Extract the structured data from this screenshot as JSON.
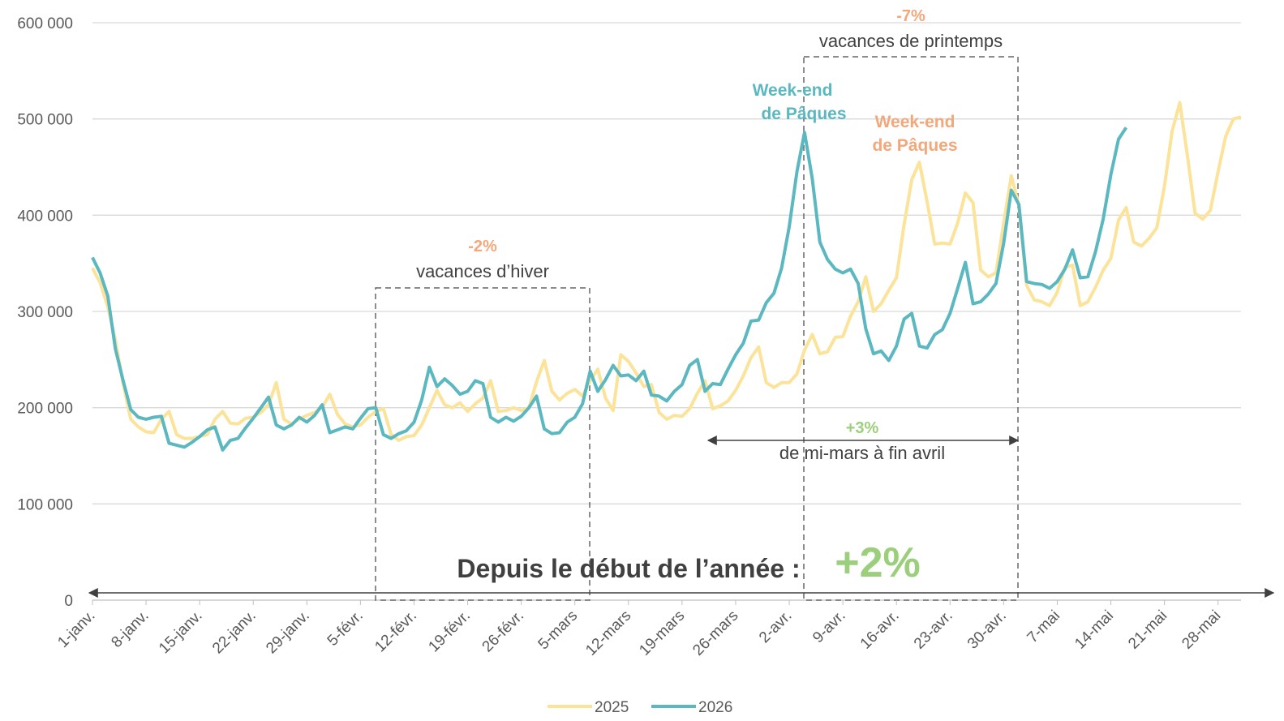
{
  "chart_data": {
    "type": "line",
    "categories": [
      "1-janv.",
      null,
      null,
      null,
      null,
      null,
      null,
      "8-janv.",
      null,
      null,
      null,
      null,
      null,
      null,
      "15-janv.",
      null,
      null,
      null,
      null,
      null,
      null,
      "22-janv.",
      null,
      null,
      null,
      null,
      null,
      null,
      "29-janv.",
      null,
      null,
      null,
      null,
      null,
      null,
      "5-févr.",
      null,
      null,
      null,
      null,
      null,
      null,
      "12-févr.",
      null,
      null,
      null,
      null,
      null,
      null,
      "19-févr.",
      null,
      null,
      null,
      null,
      null,
      null,
      "26-févr.",
      null,
      null,
      null,
      null,
      null,
      null,
      "5-mars",
      null,
      null,
      null,
      null,
      null,
      null,
      "12-mars",
      null,
      null,
      null,
      null,
      null,
      null,
      "19-mars",
      null,
      null,
      null,
      null,
      null,
      null,
      "26-mars",
      null,
      null,
      null,
      null,
      null,
      null,
      "2-avr.",
      null,
      null,
      null,
      null,
      null,
      null,
      "9-avr.",
      null,
      null,
      null,
      null,
      null,
      null,
      "16-avr.",
      null,
      null,
      null,
      null,
      null,
      null,
      "23-avr.",
      null,
      null,
      null,
      null,
      null,
      null,
      "30-avr.",
      null,
      null,
      null,
      null,
      null,
      null,
      "7-mai",
      null,
      null,
      null,
      null,
      null,
      null,
      "14-mai",
      null,
      null,
      null,
      null,
      null,
      null,
      "21-mai",
      null,
      null,
      null,
      null,
      null,
      null,
      "28-mai",
      null,
      null,
      null
    ],
    "series": [
      {
        "name": "2025",
        "color": "#fbe39a",
        "values": [
          345000,
          330000,
          305000,
          270000,
          225000,
          188000,
          180000,
          175000,
          174000,
          188000,
          196000,
          172000,
          168000,
          168000,
          170000,
          172000,
          188000,
          196000,
          184000,
          183000,
          189000,
          190000,
          195000,
          203000,
          226000,
          188000,
          183000,
          188000,
          192000,
          195000,
          200000,
          214000,
          193000,
          183000,
          180000,
          182000,
          190000,
          196000,
          199000,
          172000,
          166000,
          170000,
          171000,
          182000,
          200000,
          218000,
          203000,
          200000,
          205000,
          196000,
          204000,
          210000,
          228000,
          196000,
          197000,
          200000,
          197000,
          200000,
          227000,
          249000,
          217000,
          208000,
          215000,
          219000,
          212000,
          228000,
          240000,
          210000,
          197000,
          255000,
          248000,
          236000,
          222000,
          224000,
          195000,
          188000,
          192000,
          191000,
          199000,
          215000,
          228000,
          199000,
          202000,
          207000,
          218000,
          233000,
          252000,
          263000,
          226000,
          221000,
          226000,
          226000,
          235000,
          260000,
          276000,
          256000,
          258000,
          273000,
          274000,
          295000,
          310000,
          336000,
          300000,
          308000,
          322000,
          335000,
          390000,
          437000,
          455000,
          414000,
          370000,
          371000,
          370000,
          392000,
          423000,
          413000,
          343000,
          336000,
          340000,
          392000,
          441000,
          410000,
          327000,
          312000,
          310000,
          306000,
          320000,
          346000,
          348000,
          306000,
          310000,
          325000,
          343000,
          355000,
          395000,
          408000,
          372000,
          368000,
          376000,
          387000,
          430000,
          487000,
          517000,
          462000,
          402000,
          396000,
          405000,
          445000,
          482000,
          500000,
          502000
        ]
      },
      {
        "name": "2026",
        "color": "#5bb8c0",
        "values": [
          356000,
          340000,
          316000,
          261000,
          228000,
          198000,
          190000,
          188000,
          190000,
          191000,
          163000,
          161000,
          159000,
          164000,
          170000,
          177000,
          180000,
          156000,
          166000,
          168000,
          179000,
          189000,
          200000,
          211000,
          182000,
          178000,
          182000,
          190000,
          185000,
          192000,
          203000,
          174000,
          177000,
          180000,
          178000,
          189000,
          199000,
          200000,
          172000,
          168000,
          173000,
          176000,
          185000,
          208000,
          242000,
          222000,
          230000,
          223000,
          214000,
          217000,
          228000,
          225000,
          190000,
          185000,
          190000,
          186000,
          191000,
          200000,
          212000,
          178000,
          173000,
          174000,
          185000,
          190000,
          204000,
          238000,
          217000,
          229000,
          244000,
          233000,
          234000,
          228000,
          238000,
          213000,
          212000,
          207000,
          217000,
          224000,
          244000,
          250000,
          217000,
          225000,
          224000,
          240000,
          255000,
          267000,
          290000,
          291000,
          309000,
          319000,
          345000,
          388000,
          445000,
          486000,
          438000,
          372000,
          354000,
          344000,
          340000,
          344000,
          329000,
          282000,
          256000,
          259000,
          249000,
          264000,
          292000,
          298000,
          264000,
          262000,
          276000,
          281000,
          298000,
          324000,
          351000,
          308000,
          310000,
          318000,
          329000,
          371000,
          426000,
          411000,
          331000,
          329000,
          328000,
          324000,
          331000,
          344000,
          364000,
          335000,
          336000,
          362000,
          396000,
          442000,
          479000,
          491000,
          null,
          null,
          null,
          null,
          null,
          null,
          null,
          null,
          null,
          null,
          null,
          null,
          null,
          null,
          null
        ]
      }
    ],
    "ylim": [
      0,
      600000
    ],
    "yticks": [
      0,
      {
        "value": 100000,
        "label": "100 000"
      },
      {
        "value": 200000,
        "label": "200 000"
      },
      {
        "value": 300000,
        "label": "300 000"
      },
      {
        "value": 400000,
        "label": "400 000"
      },
      {
        "value": 500000,
        "label": "500 000"
      },
      {
        "value": 600000,
        "label": "600 000"
      }
    ],
    "grid": true,
    "legend": "bottom",
    "annotations": [
      {
        "text": "-2%",
        "color": "#f4a77a"
      },
      {
        "text": "vacances d’hiver",
        "color": "#404040"
      },
      {
        "text": "-7%",
        "color": "#f4a77a"
      },
      {
        "text": "vacances de printemps",
        "color": "#404040"
      },
      {
        "text": "Week-end",
        "color": "#5bb8c0"
      },
      {
        "text": "de Pâques",
        "color": "#5bb8c0"
      },
      {
        "text": "Week-end",
        "color": "#f4a77a"
      },
      {
        "text": "de Pâques",
        "color": "#f4a77a"
      },
      {
        "text": "+3%",
        "color": "#9bcf7c"
      },
      {
        "text": "de mi-mars à fin avril",
        "color": "#404040"
      },
      {
        "text": "Depuis le début de l’année :",
        "color": "#404040"
      },
      {
        "text": "+2%",
        "color": "#9bcf7c"
      }
    ]
  }
}
